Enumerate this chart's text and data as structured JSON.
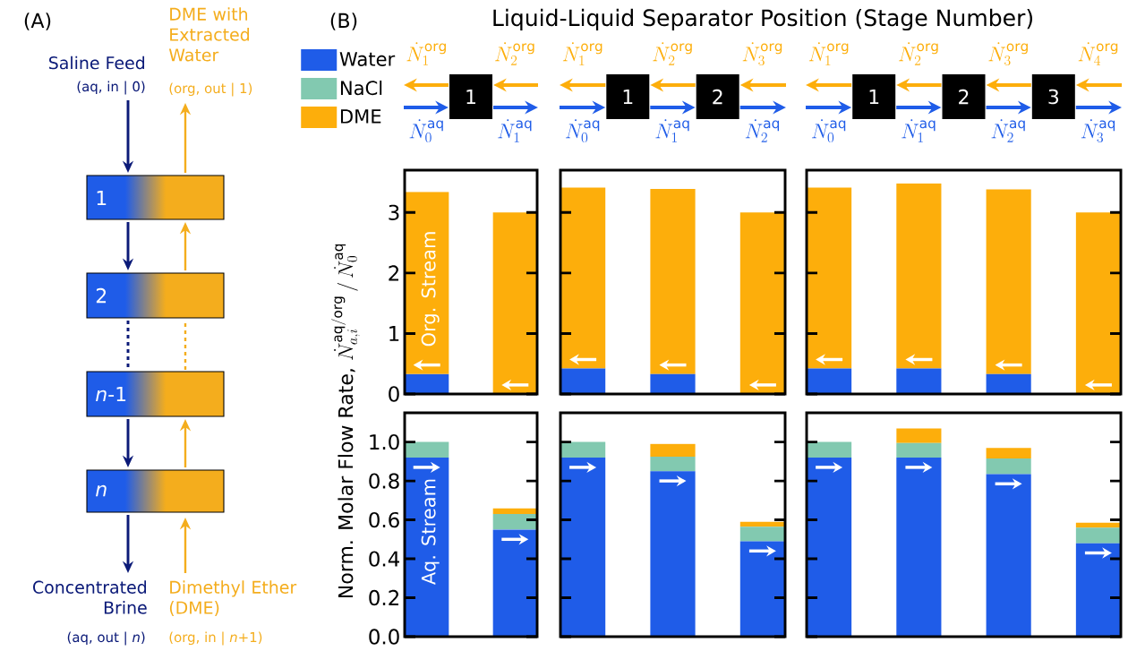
{
  "chart_data": [
    {
      "type": "other",
      "annotations": [
        "(A)",
        "Saline Feed",
        "(aq, in | 0)",
        "DME with Extracted Water",
        "(org, out | 1)",
        "Concentrated Brine",
        "(aq, out | *n*)",
        "Dimethyl Ether (DME)",
        "(org, in | *n*+1)",
        "1",
        "2",
        "*n*-1",
        "*n*",
        "(B)"
      ]
    },
    {
      "type": "bar",
      "stacked": true,
      "title": "Liquid-Liquid Separator Position (Stage Number)",
      "categories": [
        null,
        null
      ],
      "series": [
        {
          "color": "#1f5ce8",
          "values": [
            0.33,
            0
          ]
        },
        {
          "color": "#fdae0b",
          "values": [
            3.01,
            3.0
          ]
        }
      ],
      "ylim": [
        0,
        3.7
      ],
      "yticks": [
        0,
        1,
        2,
        3
      ],
      "tick_labels": "y",
      "annotations": [
        "1",
        "\\dot{N}^{\\mathrm{org}}_{1}",
        "\\dot{N}^{\\mathrm{org}}_{2}",
        "\\dot{N}^{\\mathrm{aq}}_{0}",
        "\\dot{N}^{\\mathrm{aq}}_{1}",
        "Org. Stream"
      ]
    },
    {
      "type": "bar",
      "stacked": true,
      "categories": [
        null,
        null,
        null
      ],
      "series": [
        {
          "color": "#1f5ce8",
          "values": [
            0.42,
            0.33,
            0
          ]
        },
        {
          "color": "#fdae0b",
          "values": [
            2.99,
            3.06,
            3.0
          ]
        }
      ],
      "ylim": [
        0,
        3.7
      ],
      "yticks": [
        0,
        1,
        2,
        3
      ],
      "tick_labels": false,
      "annotations": [
        "1",
        "2",
        "\\dot{N}^{\\mathrm{org}}_{1}",
        "\\dot{N}^{\\mathrm{org}}_{2}",
        "\\dot{N}^{\\mathrm{org}}_{3}",
        "\\dot{N}^{\\mathrm{aq}}_{0}",
        "\\dot{N}^{\\mathrm{aq}}_{1}",
        "\\dot{N}^{\\mathrm{aq}}_{2}"
      ]
    },
    {
      "type": "bar",
      "stacked": true,
      "categories": [
        null,
        null,
        null,
        null
      ],
      "series": [
        {
          "color": "#1f5ce8",
          "values": [
            0.42,
            0.42,
            0.33,
            0
          ]
        },
        {
          "color": "#fdae0b",
          "values": [
            2.99,
            3.06,
            3.05,
            3.0
          ]
        }
      ],
      "ylim": [
        0,
        3.7
      ],
      "yticks": [
        0,
        1,
        2,
        3
      ],
      "tick_labels": false,
      "annotations": [
        "1",
        "2",
        "3",
        "\\dot{N}^{\\mathrm{org}}_{1}",
        "\\dot{N}^{\\mathrm{org}}_{2}",
        "\\dot{N}^{\\mathrm{org}}_{3}",
        "\\dot{N}^{\\mathrm{org}}_{4}",
        "\\dot{N}^{\\mathrm{aq}}_{0}",
        "\\dot{N}^{\\mathrm{aq}}_{1}",
        "\\dot{N}^{\\mathrm{aq}}_{2}",
        "\\dot{N}^{\\mathrm{aq}}_{3}"
      ]
    },
    {
      "type": "bar",
      "stacked": true,
      "ylabel": "\\mbox{Norm. Molar Flow Rate, }\\dot{N}^{\\mathrm{aq/org}}_{a,i}\\,/\\,\\dot{N}^{\\mathrm{aq}}_{0}",
      "categories": [
        null,
        null
      ],
      "legend": "top left",
      "series": [
        {
          "name": "Water",
          "color": "#1f5ce8",
          "values": [
            0.92,
            0.55
          ]
        },
        {
          "name": "NaCl",
          "color": "#82c9b0",
          "values": [
            0.08,
            0.08
          ]
        },
        {
          "name": "DME",
          "color": "#fdae0b",
          "values": [
            0,
            0.03
          ]
        }
      ],
      "ylim": [
        0,
        1.15
      ],
      "yticks": [
        {
          "value": 0,
          "label": "0.0"
        },
        {
          "value": 0.2,
          "label": "0.2"
        },
        {
          "value": 0.4,
          "label": "0.4"
        },
        {
          "value": 0.6,
          "label": "0.6"
        },
        {
          "value": 0.8,
          "label": "0.8"
        },
        {
          "value": 1,
          "label": "1.0"
        }
      ],
      "tick_labels": "y",
      "annotations": [
        "Aq. Stream"
      ]
    },
    {
      "type": "bar",
      "stacked": true,
      "categories": [
        null,
        null,
        null
      ],
      "series": [
        {
          "color": "#1f5ce8",
          "values": [
            0.92,
            0.85,
            0.49
          ]
        },
        {
          "color": "#82c9b0",
          "values": [
            0.08,
            0.075,
            0.075
          ]
        },
        {
          "color": "#fdae0b",
          "values": [
            0,
            0.065,
            0.025
          ]
        }
      ],
      "ylim": [
        0,
        1.15
      ],
      "yticks": [
        0,
        0.2,
        0.4,
        0.6,
        0.8,
        1
      ],
      "tick_labels": false
    },
    {
      "type": "bar",
      "stacked": true,
      "categories": [
        null,
        null,
        null,
        null
      ],
      "series": [
        {
          "color": "#1f5ce8",
          "values": [
            0.92,
            0.92,
            0.835,
            0.48
          ]
        },
        {
          "color": "#82c9b0",
          "values": [
            0.08,
            0.075,
            0.08,
            0.08
          ]
        },
        {
          "color": "#fdae0b",
          "values": [
            0,
            0.075,
            0.055,
            0.025
          ]
        }
      ],
      "ylim": [
        0,
        1.15
      ],
      "yticks": [
        0,
        0.2,
        0.4,
        0.6,
        0.8,
        1
      ],
      "tick_labels": false
    }
  ]
}
